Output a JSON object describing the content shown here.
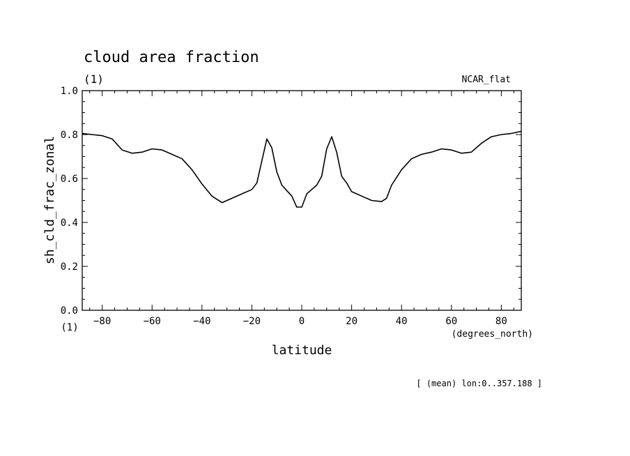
{
  "chart_data": {
    "type": "line",
    "title": "cloud area fraction",
    "title_units": "(1)",
    "corner_label": "NCAR_flat",
    "xlabel": "latitude",
    "x_units": "(degrees_north)",
    "ylabel": "sh_cld_frac_zonal",
    "y_units": "(1)",
    "footnote": "[ (mean) lon:0..357.188 ]",
    "xlim": [
      -88,
      88
    ],
    "ylim": [
      0,
      1
    ],
    "x_ticks": [
      -80,
      -60,
      -40,
      -20,
      0,
      20,
      40,
      60,
      80
    ],
    "x_tick_labels": [
      "−80",
      "−60",
      "−40",
      "−20",
      "0",
      "20",
      "40",
      "60",
      "80"
    ],
    "y_ticks": [
      0,
      0.2,
      0.4,
      0.6,
      0.8,
      1.0
    ],
    "y_tick_labels": [
      "0.0",
      "0.2",
      "0.4",
      "0.6",
      "0.8",
      "1.0"
    ],
    "grid": false,
    "line_color": "#000000",
    "series": [
      {
        "x": [
          -88,
          -84,
          -80,
          -76,
          -72,
          -68,
          -64,
          -60,
          -56,
          -52,
          -48,
          -44,
          -40,
          -36,
          -32,
          -28,
          -24,
          -20,
          -18,
          -16,
          -14,
          -12,
          -10,
          -8,
          -6,
          -4,
          -2,
          0,
          2,
          4,
          6,
          8,
          10,
          12,
          14,
          16,
          18,
          20,
          22,
          24,
          28,
          32,
          34,
          36,
          40,
          44,
          48,
          52,
          56,
          60,
          64,
          68,
          72,
          76,
          80,
          84,
          88
        ],
        "y": [
          0.805,
          0.8,
          0.795,
          0.78,
          0.73,
          0.715,
          0.72,
          0.735,
          0.73,
          0.71,
          0.69,
          0.64,
          0.575,
          0.52,
          0.49,
          0.51,
          0.53,
          0.55,
          0.58,
          0.68,
          0.78,
          0.74,
          0.63,
          0.57,
          0.545,
          0.52,
          0.47,
          0.47,
          0.53,
          0.55,
          0.57,
          0.61,
          0.735,
          0.79,
          0.72,
          0.61,
          0.58,
          0.54,
          0.53,
          0.52,
          0.5,
          0.495,
          0.51,
          0.57,
          0.64,
          0.69,
          0.71,
          0.72,
          0.735,
          0.73,
          0.715,
          0.72,
          0.76,
          0.79,
          0.8,
          0.805,
          0.815
        ]
      }
    ]
  }
}
